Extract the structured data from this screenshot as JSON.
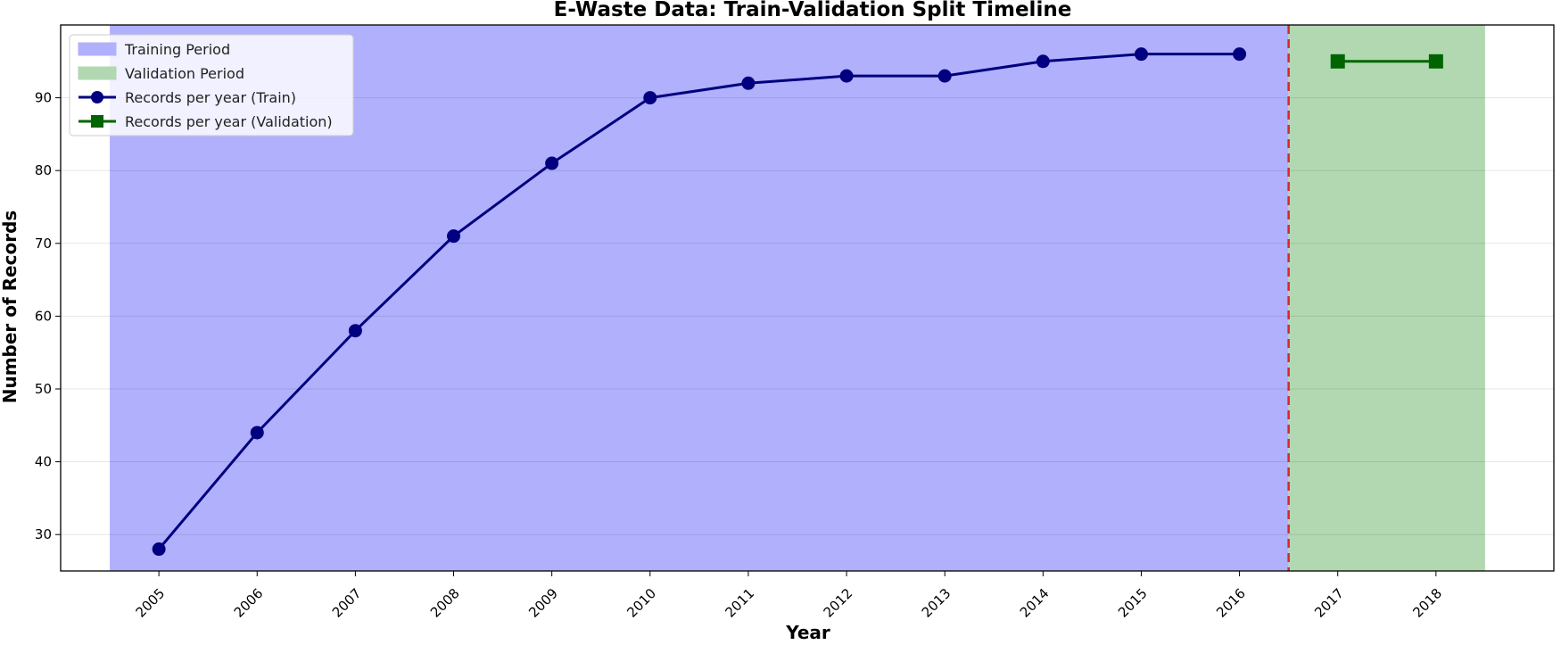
{
  "chart_data": {
    "type": "line",
    "title": "E-Waste Data: Train-Validation Split Timeline",
    "xlabel": "Year",
    "ylabel": "Number of Records",
    "x": [
      2005,
      2006,
      2007,
      2008,
      2009,
      2010,
      2011,
      2012,
      2013,
      2014,
      2015,
      2016,
      2017,
      2018
    ],
    "xlim": [
      2004,
      2019.2
    ],
    "ylim": [
      25,
      100
    ],
    "yticks": [
      30,
      40,
      50,
      60,
      70,
      80,
      90
    ],
    "grid": "horizontal",
    "legend_position": "top-left",
    "series": [
      {
        "name": "Records per year (Train)",
        "x": [
          2005,
          2006,
          2007,
          2008,
          2009,
          2010,
          2011,
          2012,
          2013,
          2014,
          2015,
          2016
        ],
        "values": [
          28,
          44,
          58,
          71,
          81,
          90,
          92,
          93,
          93,
          95,
          96,
          96
        ],
        "color": "#000080",
        "marker": "circle"
      },
      {
        "name": "Records per year (Validation)",
        "x": [
          2017,
          2018
        ],
        "values": [
          95,
          95
        ],
        "color": "#006400",
        "marker": "square"
      }
    ],
    "regions": [
      {
        "name": "Training Period",
        "x_start": 2004.5,
        "x_end": 2016.5,
        "color": "#b0b0fc"
      },
      {
        "name": "Validation Period",
        "x_start": 2016.5,
        "x_end": 2018.5,
        "color": "#b2d8b2"
      }
    ],
    "split_line": {
      "x": 2016.5,
      "color": "#d62728",
      "style": "dashed"
    }
  }
}
